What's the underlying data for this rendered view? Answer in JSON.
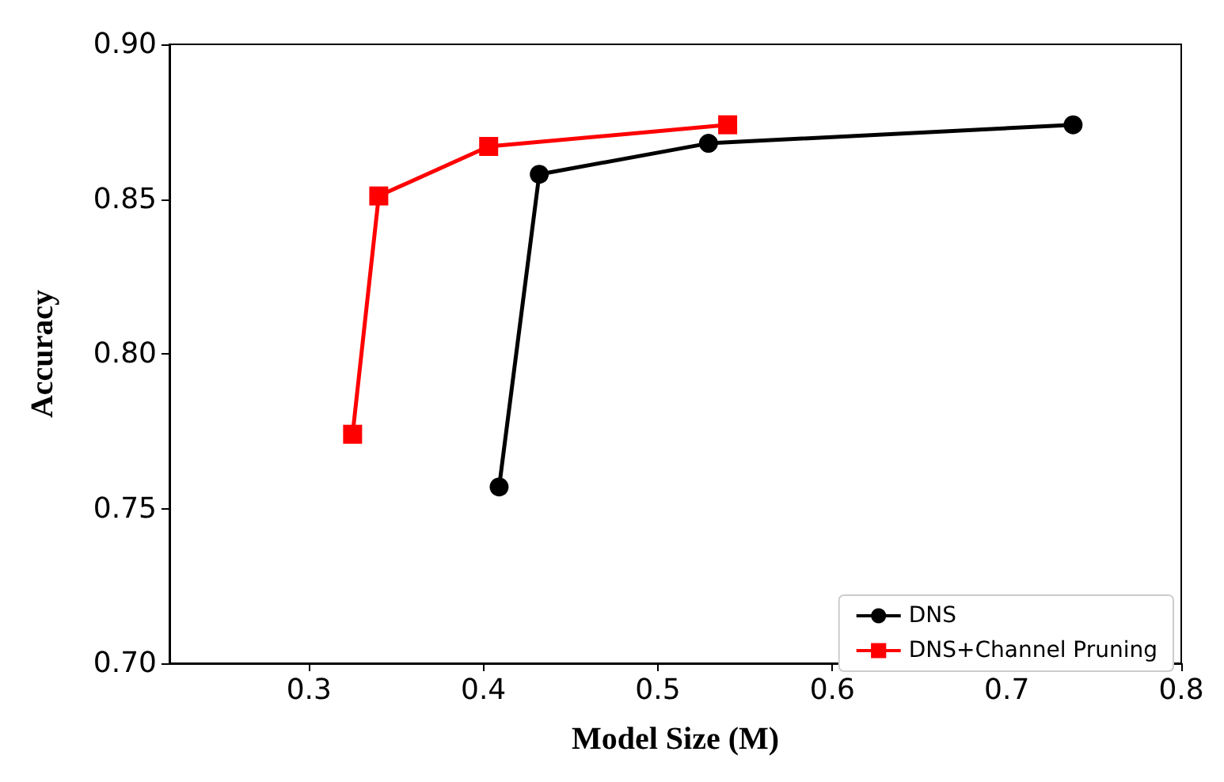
{
  "chart_data": {
    "type": "line",
    "xlabel": "Model Size (M)",
    "ylabel": "Accuracy",
    "xlim": [
      0.22,
      0.8
    ],
    "xticks": [
      0.3,
      0.4,
      0.5,
      0.6,
      0.7,
      0.8
    ],
    "ylim": [
      0.7,
      0.9
    ],
    "yticks": [
      {
        "value": 0.7,
        "label": "0.70"
      },
      0.75,
      {
        "value": 0.8,
        "label": "0.80"
      },
      0.85,
      {
        "value": 0.9,
        "label": "0.90"
      }
    ],
    "grid": false,
    "legend": "bottom right",
    "line_style": "solid",
    "series": [
      {
        "name": "DNS",
        "color": "#000000",
        "marker": "circle",
        "x": [
          0.409,
          0.432,
          0.529,
          0.738
        ],
        "values": [
          0.757,
          0.858,
          0.868,
          0.874
        ]
      },
      {
        "name": "DNS+Channel Pruning",
        "color": "#ff0000",
        "marker": "square",
        "x": [
          0.325,
          0.34,
          0.403,
          0.54
        ],
        "values": [
          0.774,
          0.851,
          0.867,
          0.874
        ]
      }
    ]
  }
}
